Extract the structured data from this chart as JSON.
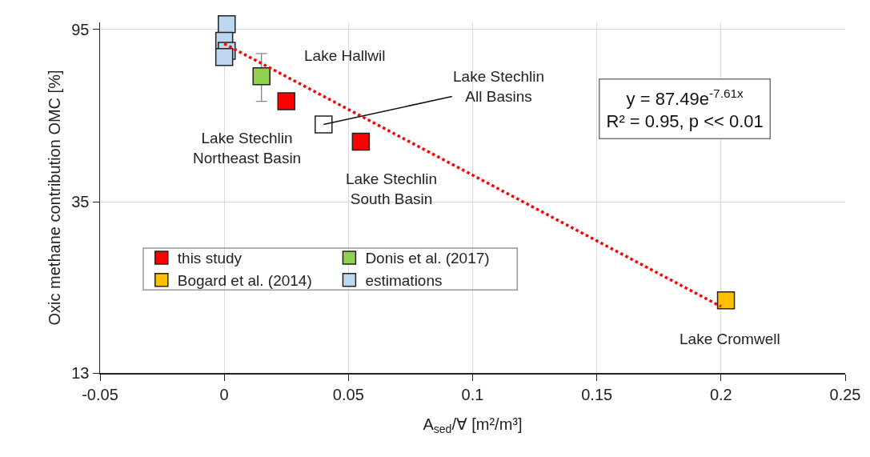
{
  "chart_data": {
    "type": "scatter",
    "xlabel": "A$_{sed}$/∀ [m²/m³]",
    "ylabel": "Oxic methane contribution OMC [%]",
    "log": "y",
    "xlim": [
      -0.05,
      0.25
    ],
    "xticks": [
      -0.05,
      0,
      0.05,
      0.1,
      0.15,
      0.2,
      0.25
    ],
    "ylim": [
      13,
      99
    ],
    "yticks": [
      13,
      35,
      95
    ],
    "grid": true,
    "legend": "bottom left",
    "marker": "square",
    "series": [
      {
        "name": "this study",
        "color": "#ff0000",
        "x": [
          0.025,
          0.055
        ],
        "values": [
          62.7,
          49.6
        ]
      },
      {
        "name": "Donis et al. (2017)",
        "color": "#92d050",
        "x": [
          0.015
        ],
        "values": [
          72.5
        ],
        "errors": [
          [
            62.7,
            82.7
          ]
        ]
      },
      {
        "name": "Bogard et al. (2014)",
        "color": "#ffc000",
        "x": [
          0.202
        ],
        "values": [
          19.8
        ]
      },
      {
        "name": "estimations",
        "color": "#bdd7ee",
        "x": [
          0.001,
          0,
          0.001,
          0
        ],
        "values": [
          98,
          89,
          84,
          81
        ]
      },
      {
        "color": "#ffffff",
        "x": [
          0.04
        ],
        "values": [
          54.8
        ]
      },
      {
        "type": "line",
        "color": "#ff0000",
        "line_style": "dotted",
        "marker": "none",
        "x": [
          0,
          0.2
        ],
        "values": [
          87.5,
          19.1
        ]
      }
    ],
    "annotations": [
      {
        "text": "Lake Hallwil",
        "x": 0.015,
        "y": 72.5
      },
      {
        "text": "Lake Stechlin\nNortheast Basin",
        "x": 0.025,
        "y": 62.7
      },
      {
        "text": "Lake Stechlin\nAll Basins",
        "x": 0.04,
        "y": 54.8
      },
      {
        "text": "Lake Stechlin\nSouth Basin",
        "x": 0.055,
        "y": 49.6
      },
      {
        "text": "Lake Cromwell",
        "x": 0.202,
        "y": 19.8
      },
      "y = 87.49e$^{-7.61x}$\nR² = 0.95, p << 0.01"
    ]
  }
}
